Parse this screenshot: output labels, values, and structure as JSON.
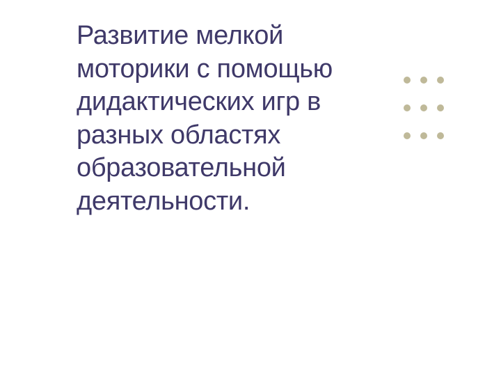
{
  "slide": {
    "title_text": "Развитие мелкой моторики с помощью дидактических игр в разных областях образовательной деятельности.",
    "title_color": "#3f3969",
    "title_fontsize": 38,
    "background_color": "#ffffff"
  },
  "decoration": {
    "dot_color": "#bfb999",
    "dot_size": 10,
    "rows": 3,
    "cols": 3,
    "row_gap": 30,
    "col_gap": 14
  }
}
